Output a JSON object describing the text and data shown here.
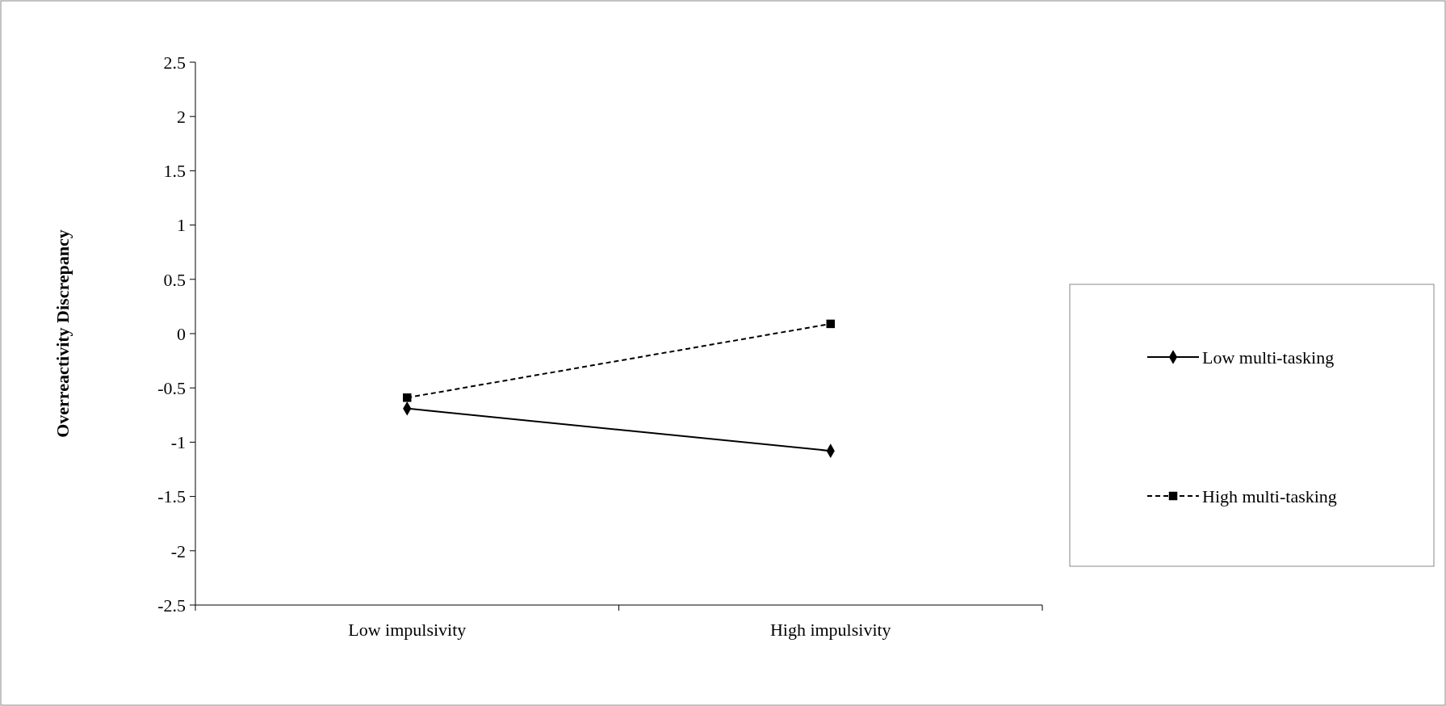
{
  "chart_data": {
    "type": "line",
    "ylabel": "Overreactivity Discrepancy",
    "categories": [
      "Low impulsivity",
      "High impulsivity"
    ],
    "series": [
      {
        "name": "Low multi-tasking",
        "color": "#000000",
        "values": [
          -0.69,
          -1.08
        ],
        "marker": "diamond",
        "line_style": "solid"
      },
      {
        "name": "High multi-tasking",
        "color": "#000000",
        "values": [
          -0.59,
          0.09
        ],
        "marker": "square",
        "line_style": "dashed"
      }
    ],
    "ylim": [
      -2.5,
      2.5
    ],
    "yticks": [
      -2.5,
      -2,
      -1.5,
      -1,
      -0.5,
      0,
      0.5,
      1,
      1.5,
      2,
      2.5
    ],
    "grid": false,
    "legend": "right"
  }
}
